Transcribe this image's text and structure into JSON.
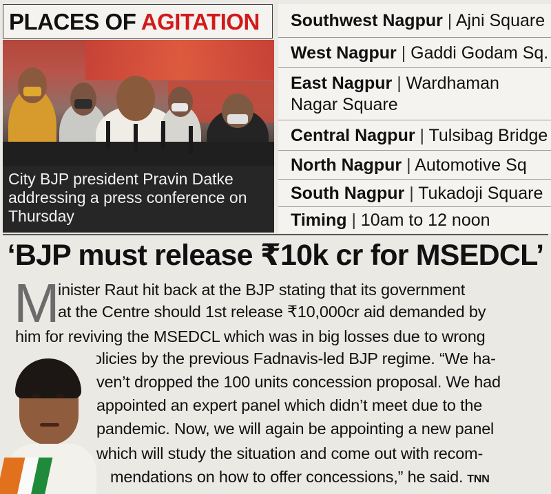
{
  "header": {
    "title_part1": "PLACES OF ",
    "title_part2": "AGITATION",
    "accent_color": "#d21a1a"
  },
  "photo": {
    "caption": "City BJP president Pravin Datke addressing a press conference on Thursday"
  },
  "places": [
    {
      "region": "Southwest Nagpur",
      "location": "Ajni Square"
    },
    {
      "region": "West Nagpur",
      "location": "Gaddi Godam Sq."
    },
    {
      "region": "East Nagpur",
      "location": "Wardhaman Nagar Square"
    },
    {
      "region": "Central Nagpur",
      "location": "Tulsibag Bridge"
    },
    {
      "region": "North Nagpur",
      "location": "Automotive Sq"
    },
    {
      "region": "South Nagpur",
      "location": "Tukadoji Square"
    },
    {
      "region": "Timing",
      "location": "10am to 12 noon"
    }
  ],
  "separator": "|",
  "article": {
    "headline": "‘BJP must release ₹10k cr for MSEDCL’",
    "dropcap": "M",
    "lines": [
      "inister Raut hit back at the BJP stating that its government",
      "at the Centre should 1st release ₹10,000cr aid demanded by",
      "him for reviving the MSEDCL which was in big losses due to wrong",
      "policies by the previous Fadnavis-led BJP regime. “We ha-",
      "ven’t dropped the 100 units concession proposal. We had",
      "appointed an expert panel which didn’t meet due to the",
      "pandemic. Now, we will again be appointing a new panel",
      "which will study the situation and come out with recom-",
      "mendations on how to offer concessions,” he said."
    ],
    "credit": "TNN"
  }
}
